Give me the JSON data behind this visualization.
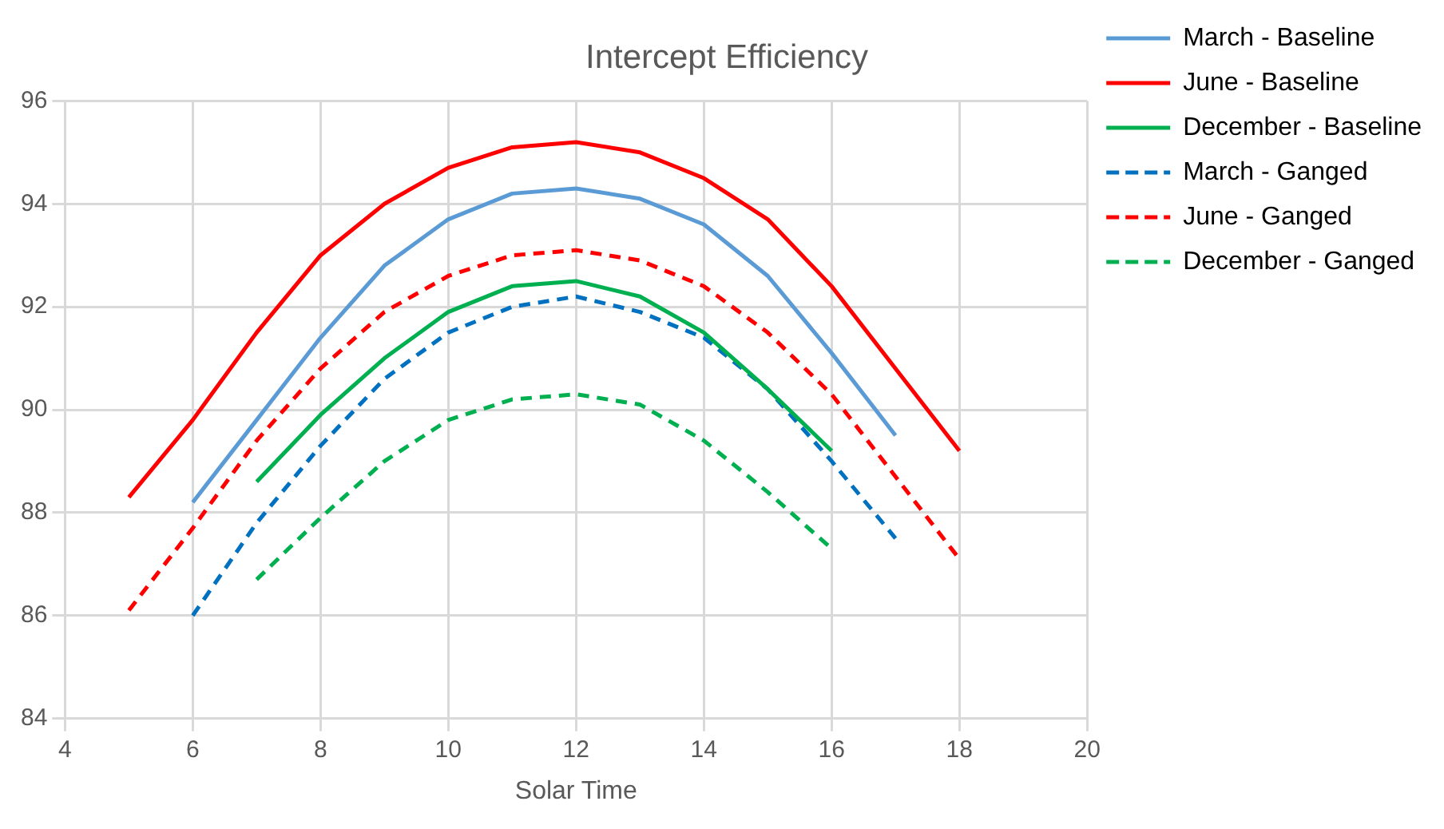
{
  "chart_data": {
    "type": "line",
    "title": "Intercept Efficiency",
    "xlabel": "Solar Time",
    "xlim": [
      4,
      20
    ],
    "xticks": [
      4,
      6,
      8,
      10,
      12,
      14,
      16,
      18,
      20
    ],
    "ylim": [
      84,
      96
    ],
    "yticks": [
      84,
      86,
      88,
      90,
      92,
      94,
      96
    ],
    "grid": true,
    "legend": "top right",
    "marker": "none",
    "series": [
      {
        "name": "March - Baseline",
        "color": "#5b9bd5",
        "line_style": "solid",
        "x": [
          6,
          7,
          8,
          9,
          10,
          11,
          12,
          13,
          14,
          15,
          16,
          17
        ],
        "values": [
          88.2,
          89.8,
          91.4,
          92.8,
          93.7,
          94.2,
          94.3,
          94.1,
          93.6,
          92.6,
          91.1,
          89.5
        ]
      },
      {
        "name": "June - Baseline",
        "color": "#ff0000",
        "line_style": "solid",
        "x": [
          5,
          6,
          7,
          8,
          9,
          10,
          11,
          12,
          13,
          14,
          15,
          16,
          17,
          18
        ],
        "values": [
          88.3,
          89.8,
          91.5,
          93.0,
          94.0,
          94.7,
          95.1,
          95.2,
          95.0,
          94.5,
          93.7,
          92.4,
          90.8,
          89.2
        ]
      },
      {
        "name": "December - Baseline",
        "color": "#00b050",
        "line_style": "solid",
        "x": [
          7,
          8,
          9,
          10,
          11,
          12,
          13,
          14,
          15,
          16
        ],
        "values": [
          88.6,
          89.9,
          91.0,
          91.9,
          92.4,
          92.5,
          92.2,
          91.5,
          90.4,
          89.2
        ]
      },
      {
        "name": "March - Ganged",
        "color": "#0070c0",
        "line_style": "dashed",
        "x": [
          6,
          7,
          8,
          9,
          10,
          11,
          12,
          13,
          14,
          15,
          16,
          17
        ],
        "values": [
          86.0,
          87.8,
          89.3,
          90.6,
          91.5,
          92.0,
          92.2,
          91.9,
          91.4,
          90.4,
          89.0,
          87.5
        ]
      },
      {
        "name": "June - Ganged",
        "color": "#ff0000",
        "line_style": "dashed",
        "x": [
          5,
          6,
          7,
          8,
          9,
          10,
          11,
          12,
          13,
          14,
          15,
          16,
          17,
          18
        ],
        "values": [
          86.1,
          87.7,
          89.4,
          90.8,
          91.9,
          92.6,
          93.0,
          93.1,
          92.9,
          92.4,
          91.5,
          90.3,
          88.7,
          87.1
        ]
      },
      {
        "name": "December - Ganged",
        "color": "#00b050",
        "line_style": "dashed",
        "x": [
          7,
          8,
          9,
          10,
          11,
          12,
          13,
          14,
          15,
          16
        ],
        "values": [
          86.7,
          87.9,
          89.0,
          89.8,
          90.2,
          90.3,
          90.1,
          89.4,
          88.4,
          87.3
        ]
      }
    ]
  }
}
